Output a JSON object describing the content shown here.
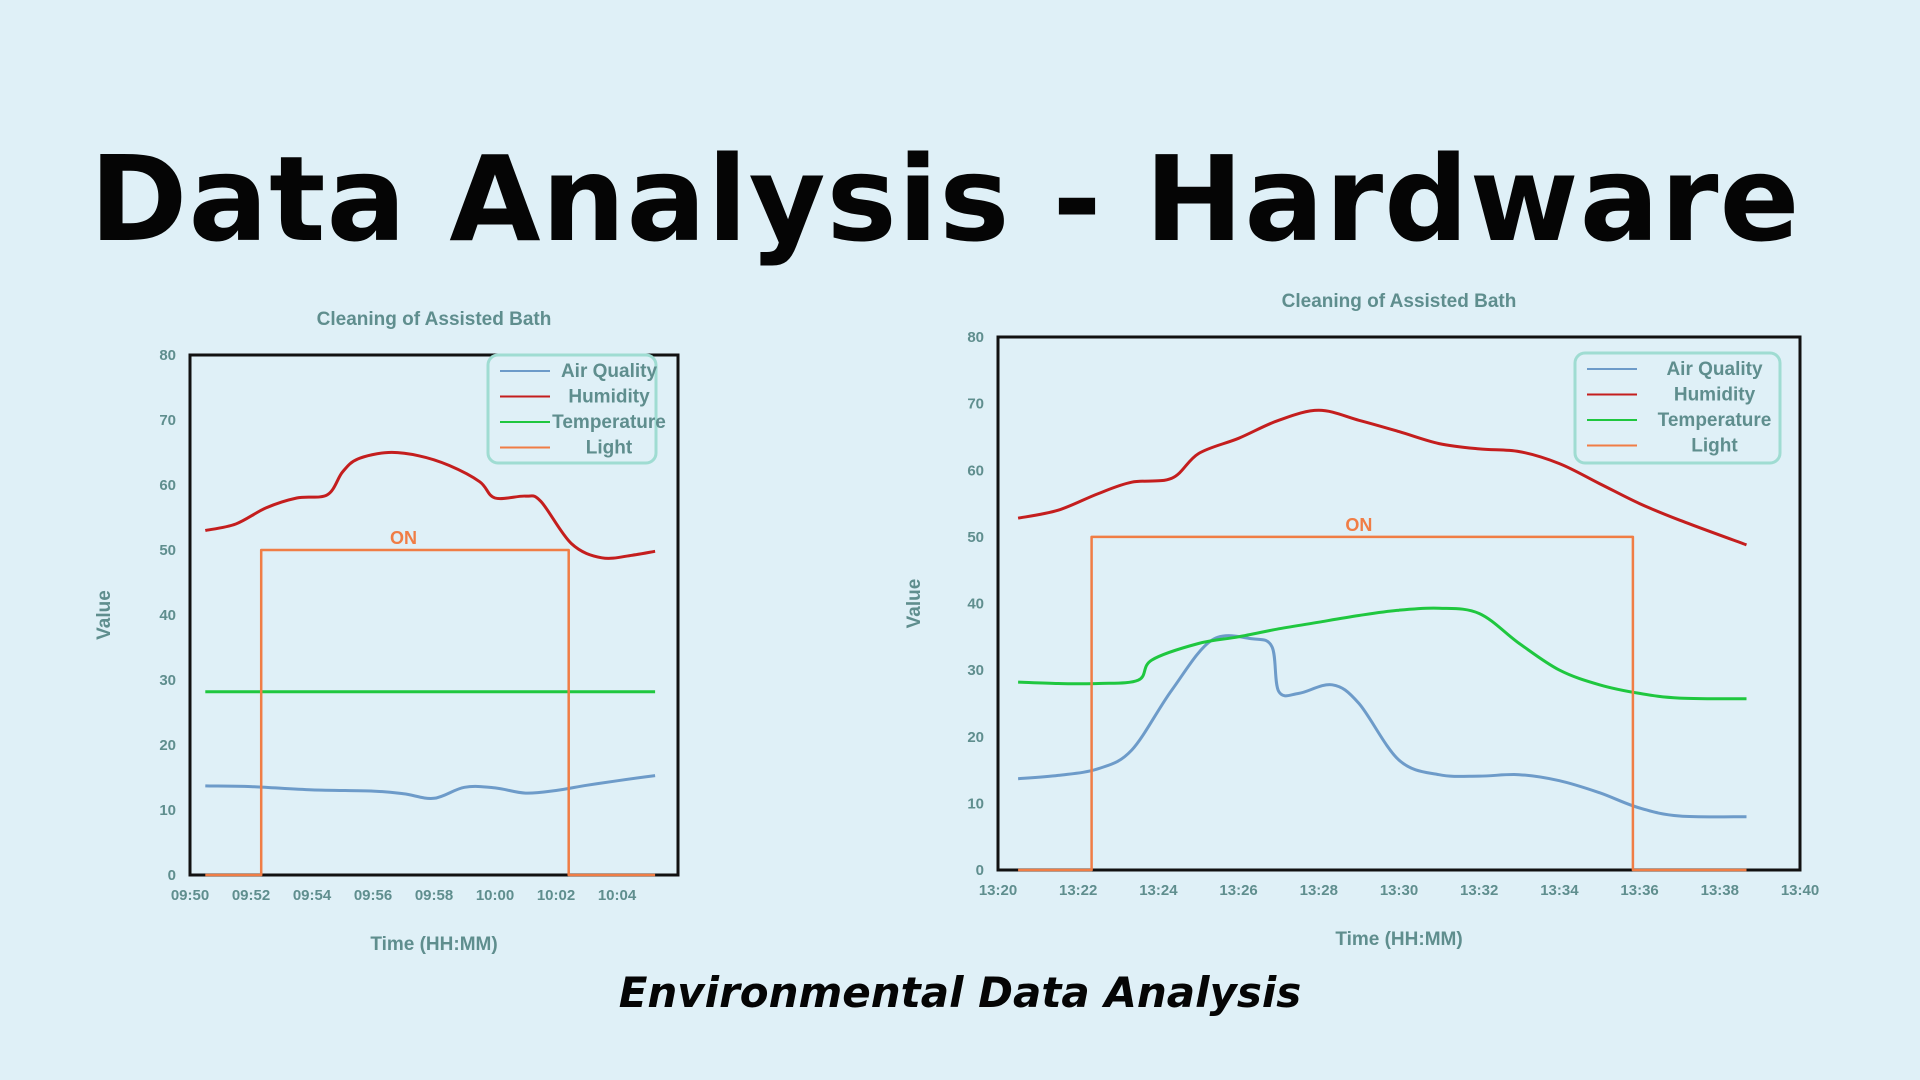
{
  "page": {
    "title": "Data Analysis - Hardware",
    "subtitle": "Environmental Data Analysis"
  },
  "colors": {
    "background": "#dff0f7",
    "air_quality": "#6d9bc9",
    "humidity": "#c41e1e",
    "temperature": "#1fc73f",
    "light": "#f07d45",
    "axis_text": "#5f8e8e",
    "legend_border": "#9fdcd2"
  },
  "chart_data": [
    {
      "type": "line",
      "title": "Cleaning of Assisted Bath",
      "xlabel": "Time (HH:MM)",
      "ylabel": "Value",
      "ylim": [
        0,
        80
      ],
      "yticks": [
        0,
        10,
        20,
        30,
        40,
        50,
        60,
        70,
        80
      ],
      "xlim": [
        "09:50",
        "10:06"
      ],
      "xticks": [
        "09:50",
        "09:52",
        "09:54",
        "09:56",
        "09:58",
        "10:00",
        "10:02",
        "10:04"
      ],
      "grid": false,
      "legend_position": "top-right",
      "annotation": {
        "text": "ON",
        "x": "09:57",
        "y": 50
      },
      "series": [
        {
          "name": "Air Quality",
          "color": "#6d9bc9",
          "x": [
            "09:50:30",
            "09:52",
            "09:54",
            "09:56",
            "09:57",
            "09:58",
            "09:59",
            "10:00",
            "10:01",
            "10:02",
            "10:03",
            "10:04",
            "10:05:15"
          ],
          "y": [
            13.7,
            13.6,
            13.1,
            12.9,
            12.5,
            11.8,
            13.5,
            13.4,
            12.6,
            13.0,
            13.8,
            14.5,
            15.3
          ]
        },
        {
          "name": "Humidity",
          "color": "#c41e1e",
          "x": [
            "09:50:30",
            "09:51:30",
            "09:52:30",
            "09:53:30",
            "09:54:30",
            "09:55",
            "09:55:30",
            "09:56:30",
            "09:57:30",
            "09:58:30",
            "09:59:30",
            "10:00",
            "10:01",
            "10:01:30",
            "10:02:30",
            "10:03:30",
            "10:04:30",
            "10:05:15"
          ],
          "y": [
            53,
            54,
            56.5,
            58,
            58.5,
            62,
            64,
            65,
            64.5,
            63,
            60.5,
            58,
            58.3,
            57.5,
            51,
            48.8,
            49.2,
            49.8
          ]
        },
        {
          "name": "Temperature",
          "color": "#1fc73f",
          "x": [
            "09:50:30",
            "10:05:15"
          ],
          "y": [
            28.2,
            28.2
          ]
        },
        {
          "name": "Light",
          "color": "#f07d45",
          "x": [
            "09:50:30",
            "09:52:20",
            "09:52:20",
            "10:02:25",
            "10:02:25",
            "10:05:15"
          ],
          "y": [
            0,
            0,
            50,
            50,
            0,
            0
          ]
        }
      ]
    },
    {
      "type": "line",
      "title": "Cleaning of Assisted Bath",
      "xlabel": "Time (HH:MM)",
      "ylabel": "Value",
      "ylim": [
        0,
        80
      ],
      "yticks": [
        0,
        10,
        20,
        30,
        40,
        50,
        60,
        70,
        80
      ],
      "xlim": [
        "13:20",
        "13:40"
      ],
      "xticks": [
        "13:20",
        "13:22",
        "13:24",
        "13:26",
        "13:28",
        "13:30",
        "13:32",
        "13:34",
        "13:36",
        "13:38",
        "13:40"
      ],
      "grid": false,
      "legend_position": "top-right",
      "annotation": {
        "text": "ON",
        "x": "13:29",
        "y": 50
      },
      "series": [
        {
          "name": "Air Quality",
          "color": "#6d9bc9",
          "x": [
            "13:20:30",
            "13:21:30",
            "13:22:30",
            "13:23:20",
            "13:24:20",
            "13:25:20",
            "13:26:20",
            "13:26:50",
            "13:27",
            "13:27:30",
            "13:28:20",
            "13:29",
            "13:30",
            "13:31",
            "13:32",
            "13:33",
            "13:34",
            "13:35",
            "13:36",
            "13:37",
            "13:38:40"
          ],
          "y": [
            13.7,
            14.2,
            15.2,
            18,
            27,
            34.5,
            34.7,
            33.5,
            26.8,
            26.5,
            27.8,
            25,
            16.5,
            14.3,
            14.1,
            14.3,
            13.4,
            11.6,
            9.3,
            8.1,
            8.0
          ]
        },
        {
          "name": "Humidity",
          "color": "#c41e1e",
          "x": [
            "13:20:30",
            "13:21:30",
            "13:22:30",
            "13:23:20",
            "13:24:20",
            "13:25",
            "13:26",
            "13:27",
            "13:28",
            "13:29",
            "13:30",
            "13:31",
            "13:32",
            "13:33",
            "13:34",
            "13:35",
            "13:36",
            "13:37",
            "13:38:40"
          ],
          "y": [
            52.8,
            54,
            56.5,
            58.2,
            58.8,
            62.5,
            64.8,
            67.5,
            69,
            67.5,
            65.8,
            64,
            63.2,
            62.8,
            61,
            58,
            55,
            52.5,
            48.8
          ]
        },
        {
          "name": "Temperature",
          "color": "#1fc73f",
          "x": [
            "13:20:30",
            "13:21:30",
            "13:22:30",
            "13:23:30",
            "13:23:50",
            "13:25",
            "13:26",
            "13:27",
            "13:28",
            "13:29",
            "13:30",
            "13:31",
            "13:32",
            "13:33",
            "13:34",
            "13:35",
            "13:36",
            "13:37",
            "13:38:40"
          ],
          "y": [
            28.2,
            28,
            28,
            28.5,
            31.5,
            34,
            35,
            36.2,
            37.2,
            38.2,
            39,
            39.3,
            38.5,
            34,
            30,
            27.8,
            26.5,
            25.8,
            25.7
          ]
        },
        {
          "name": "Light",
          "color": "#f07d45",
          "x": [
            "13:20:30",
            "13:22:20",
            "13:22:20",
            "13:35:50",
            "13:35:50",
            "13:38:40"
          ],
          "y": [
            0,
            0,
            50,
            50,
            0,
            0
          ]
        }
      ]
    }
  ]
}
